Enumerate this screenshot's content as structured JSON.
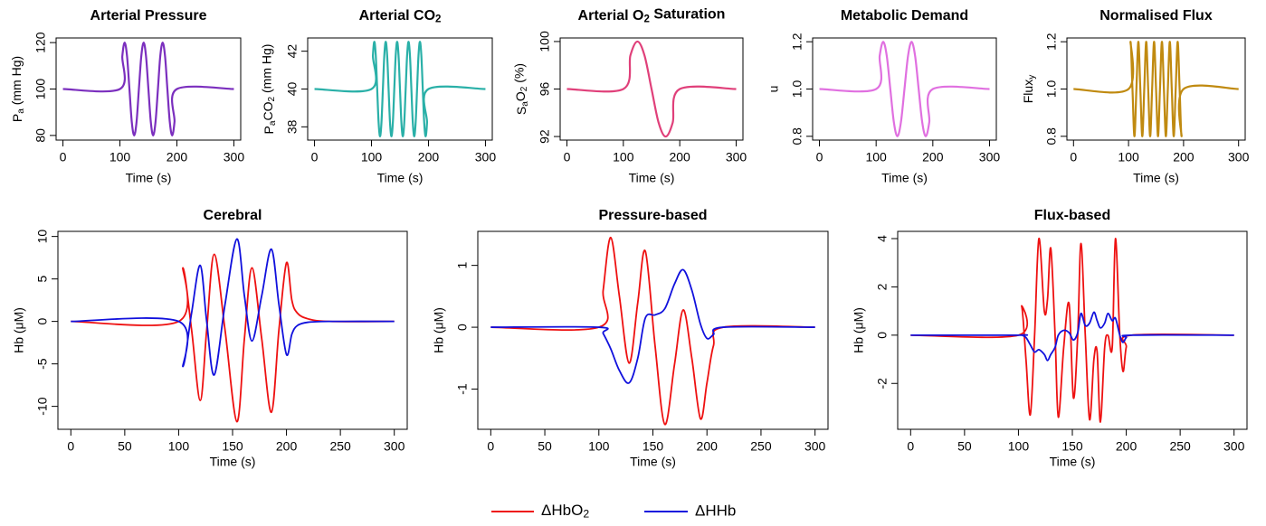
{
  "chart_data": [
    {
      "type": "line",
      "title": "Arterial Pressure",
      "xlabel": "Time (s)",
      "ylabel": [
        {
          "text": "P"
        },
        {
          "text": "a",
          "sub": true
        },
        {
          "text": " (mm Hg)"
        }
      ],
      "x": [
        0,
        100,
        104.2,
        108.3,
        112.5,
        116.7,
        120.8,
        125,
        129.2,
        133.3,
        137.5,
        141.7,
        145.8,
        150,
        154.2,
        158.3,
        162.5,
        166.7,
        170.8,
        175,
        179.2,
        183.3,
        187.5,
        191.7,
        195.8,
        200,
        300
      ],
      "series": [
        {
          "color": "#7b2fbe",
          "values": [
            100,
            100,
            114.14,
            120,
            114.14,
            100,
            85.86,
            80,
            85.86,
            100,
            114.14,
            120,
            114.14,
            100,
            85.86,
            80,
            85.86,
            100,
            114.14,
            120,
            114.14,
            100,
            85.86,
            80,
            85.86,
            100,
            100
          ]
        }
      ],
      "xlim": [
        -12,
        312
      ],
      "ylim": [
        78,
        122
      ],
      "xticks": [
        0,
        100,
        200,
        300
      ],
      "yticks": [
        80,
        100,
        120
      ]
    },
    {
      "type": "line",
      "title": [
        {
          "text": "Arterial CO"
        },
        {
          "text": "2",
          "sub": true
        }
      ],
      "xlabel": "Time (s)",
      "ylabel": [
        {
          "text": "P"
        },
        {
          "text": "a",
          "sub": true
        },
        {
          "text": "CO"
        },
        {
          "text": "2",
          "sub": true
        },
        {
          "text": " (mm Hg)"
        }
      ],
      "x": [
        0,
        100,
        102.5,
        105,
        107.5,
        110,
        112.5,
        115,
        117.5,
        120,
        122.5,
        125,
        127.5,
        130,
        132.5,
        135,
        137.5,
        140,
        142.5,
        145,
        147.5,
        150,
        152.5,
        155,
        157.5,
        160,
        162.5,
        165,
        167.5,
        170,
        172.5,
        175,
        177.5,
        180,
        182.5,
        185,
        187.5,
        190,
        192.5,
        195,
        197.5,
        200,
        300
      ],
      "series": [
        {
          "color": "#2ab0a8",
          "values": [
            40,
            40,
            41.77,
            42.5,
            41.77,
            40,
            38.23,
            37.5,
            38.23,
            40,
            41.77,
            42.5,
            41.77,
            40,
            38.23,
            37.5,
            38.23,
            40,
            41.77,
            42.5,
            41.77,
            40,
            38.23,
            37.5,
            38.23,
            40,
            41.77,
            42.5,
            41.77,
            40,
            38.23,
            37.5,
            38.23,
            40,
            41.77,
            42.5,
            41.77,
            40,
            38.23,
            37.5,
            38.23,
            40,
            40
          ]
        }
      ],
      "xlim": [
        -12,
        312
      ],
      "ylim": [
        37.3,
        42.7
      ],
      "xticks": [
        0,
        100,
        200,
        300
      ],
      "yticks": [
        38,
        40,
        42
      ]
    },
    {
      "type": "line",
      "title": [
        {
          "text": "Arterial O"
        },
        {
          "text": "2",
          "sub": true
        },
        {
          "text": " Saturation"
        }
      ],
      "xlabel": "Time (s)",
      "ylabel": [
        {
          "text": "S"
        },
        {
          "text": "a",
          "sub": true
        },
        {
          "text": "O"
        },
        {
          "text": "2",
          "sub": true
        },
        {
          "text": " (%)"
        }
      ],
      "x": [
        0,
        100,
        112.5,
        125,
        137.5,
        150,
        162.5,
        175,
        187.5,
        200,
        300
      ],
      "series": [
        {
          "color": "#e0407a",
          "values": [
            96,
            96,
            98.83,
            100,
            98.83,
            96,
            93.17,
            92,
            93.17,
            96,
            96
          ]
        }
      ],
      "xlim": [
        -12,
        312
      ],
      "ylim": [
        91.7,
        100.3
      ],
      "xticks": [
        0,
        100,
        200,
        300
      ],
      "yticks": [
        92,
        96,
        100
      ]
    },
    {
      "type": "line",
      "title": "Metabolic Demand",
      "xlabel": "Time (s)",
      "ylabel": "u",
      "x": [
        0,
        100,
        106.25,
        112.5,
        118.75,
        125,
        131.25,
        137.5,
        143.75,
        150,
        156.25,
        162.5,
        168.75,
        175,
        181.25,
        187.5,
        193.75,
        200,
        300
      ],
      "series": [
        {
          "color": "#e070e0",
          "values": [
            1,
            1,
            1.14,
            1.2,
            1.14,
            1,
            0.86,
            0.8,
            0.86,
            1,
            1.14,
            1.2,
            1.14,
            1,
            0.86,
            0.8,
            0.86,
            1,
            1
          ]
        }
      ],
      "xlim": [
        -12,
        312
      ],
      "ylim": [
        0.784,
        1.216
      ],
      "xticks": [
        0,
        100,
        200,
        300
      ],
      "yticks": [
        0.8,
        {
          "value": 1,
          "label": "1.0"
        },
        1.2
      ]
    },
    {
      "type": "line",
      "title": "Normalised Flux",
      "xlabel": "Time (s)",
      "ylabel": [
        {
          "text": "Flux"
        },
        {
          "text": "y",
          "sub": true
        }
      ],
      "x": [
        0,
        100,
        103.57,
        107.14,
        110.71,
        114.29,
        117.86,
        121.43,
        125,
        128.57,
        132.14,
        135.71,
        139.29,
        142.86,
        146.43,
        150,
        153.57,
        157.14,
        160.71,
        164.29,
        167.86,
        171.43,
        175,
        178.57,
        182.14,
        185.71,
        189.29,
        192.86,
        196.43,
        200,
        300
      ],
      "series": [
        {
          "color": "#c08a10",
          "values": [
            1,
            1,
            1.2,
            1,
            0.8,
            1,
            1.2,
            1,
            0.8,
            1,
            1.2,
            1,
            0.8,
            1,
            1.2,
            1,
            0.8,
            1,
            1.2,
            1,
            0.8,
            1,
            1.2,
            1,
            0.8,
            1,
            1.2,
            1,
            0.8,
            1,
            1
          ]
        }
      ],
      "xlim": [
        -12,
        312
      ],
      "ylim": [
        0.784,
        1.216
      ],
      "xticks": [
        0,
        100,
        200,
        300
      ],
      "yticks": [
        0.8,
        {
          "value": 1,
          "label": "1.0"
        },
        1.2
      ]
    },
    {
      "type": "line",
      "title": "Cerebral",
      "xlabel": "Time (s)",
      "ylabel": "Hb (μM)",
      "x": [
        0,
        100,
        104,
        112,
        120,
        126,
        133,
        143,
        154,
        161,
        168,
        177,
        186,
        193,
        200,
        205,
        210,
        220,
        240,
        300
      ],
      "series": [
        {
          "name": [
            {
              "text": "ΔHbO"
            },
            {
              "text": "2",
              "sub": true
            }
          ],
          "color": "#ee1111",
          "values": [
            0,
            0,
            6.3,
            -1,
            -9.3,
            -1,
            7.9,
            -1,
            -11.8,
            -2,
            6.3,
            -2,
            -10.7,
            -1,
            6.9,
            2.5,
            1,
            0.3,
            0,
            0
          ]
        },
        {
          "name": "ΔHHb",
          "color": "#1111dd",
          "values": [
            0,
            0,
            -5.3,
            1,
            6.6,
            0,
            -6.3,
            2,
            9.7,
            3,
            -2.3,
            3,
            8.5,
            2,
            -3.9,
            -1.5,
            -0.5,
            -0.1,
            0,
            0
          ]
        }
      ],
      "xlim": [
        -12,
        312
      ],
      "ylim": [
        -12.7,
        10.6
      ],
      "xticks": [
        0,
        50,
        100,
        150,
        200,
        250,
        300
      ],
      "yticks": [
        -10,
        -5,
        0,
        5,
        10
      ]
    },
    {
      "type": "line",
      "title": "Pressure-based",
      "xlabel": "Time (s)",
      "ylabel": "Hb (μM)",
      "x": [
        0,
        100,
        104,
        111,
        119,
        128,
        136,
        143,
        152,
        161,
        170,
        178,
        186,
        194,
        200,
        206,
        215,
        300
      ],
      "series": [
        {
          "color": "#ee1111",
          "values": [
            0,
            0,
            0.6,
            1.45,
            0.5,
            -0.58,
            0.4,
            1.23,
            -0.3,
            -1.57,
            -0.6,
            0.28,
            -0.5,
            -1.48,
            -0.9,
            -0.3,
            0,
            0
          ]
        },
        {
          "color": "#1111dd",
          "values": [
            0,
            0,
            -0.1,
            -0.35,
            -0.7,
            -0.9,
            -0.5,
            0.15,
            0.2,
            0.3,
            0.7,
            0.93,
            0.6,
            0.05,
            -0.18,
            -0.12,
            0,
            0
          ]
        }
      ],
      "xlim": [
        -12,
        312
      ],
      "ylim": [
        -1.65,
        1.55
      ],
      "xticks": [
        0,
        50,
        100,
        150,
        200,
        250,
        300
      ],
      "yticks": [
        -1,
        0,
        1
      ]
    },
    {
      "type": "line",
      "title": "Flux-based",
      "xlabel": "Time (s)",
      "ylabel": "Hb (μM)",
      "x": [
        0,
        100,
        103,
        107,
        111,
        115,
        119,
        124,
        127,
        130,
        134,
        137,
        142,
        147,
        151,
        155,
        158,
        162,
        166,
        170,
        173,
        176,
        180,
        183,
        187,
        190,
        194,
        197,
        200,
        205,
        300
      ],
      "series": [
        {
          "color": "#ee1111",
          "values": [
            0,
            0,
            1.2,
            -1,
            -3.3,
            0,
            4,
            1,
            1.5,
            3.6,
            0,
            -3.4,
            -0.5,
            1.3,
            -2.6,
            0,
            3.8,
            0,
            -3.5,
            -1,
            -0.7,
            -3.6,
            -0.5,
            0,
            -0.5,
            4,
            0,
            -1.5,
            -0.5,
            0,
            0
          ]
        },
        {
          "color": "#1111dd",
          "values": [
            0,
            0,
            0,
            -0.1,
            -0.4,
            -0.7,
            -0.6,
            -0.8,
            -1.05,
            -0.8,
            -0.5,
            0,
            0.2,
            0.1,
            -0.2,
            0.1,
            0.9,
            0.4,
            0.5,
            0.95,
            0.6,
            0.3,
            0.5,
            0.9,
            0.6,
            0.7,
            0,
            -0.3,
            -0.1,
            0,
            0
          ]
        }
      ],
      "xlim": [
        -12,
        312
      ],
      "ylim": [
        -3.9,
        4.3
      ],
      "xticks": [
        0,
        50,
        100,
        150,
        200,
        250,
        300
      ],
      "yticks": [
        -2,
        0,
        2,
        4
      ]
    }
  ]
}
